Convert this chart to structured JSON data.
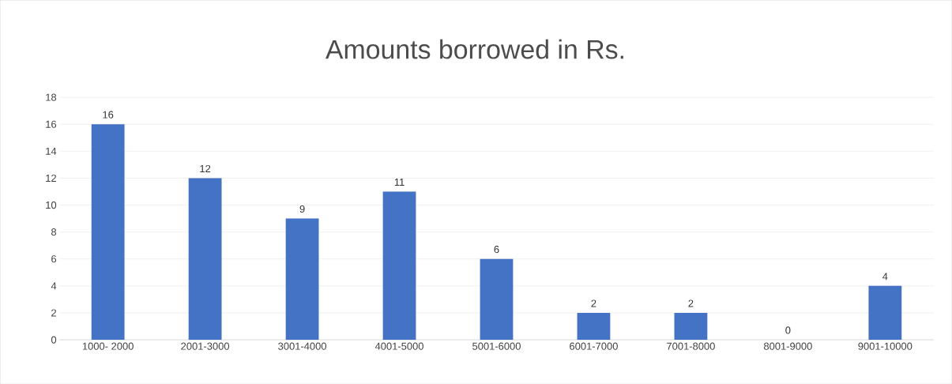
{
  "chart_data": {
    "type": "bar",
    "title": "Amounts borrowed in Rs.",
    "categories": [
      "1000- 2000",
      "2001-3000",
      "3001-4000",
      "4001-5000",
      "5001-6000",
      "6001-7000",
      "7001-8000",
      "8001-9000",
      "9001-10000"
    ],
    "values": [
      16,
      12,
      9,
      11,
      6,
      2,
      2,
      0,
      4
    ],
    "color": "#4472c4",
    "ylim": [
      0,
      18
    ],
    "yticks": [
      0,
      2,
      4,
      6,
      8,
      10,
      12,
      14,
      16,
      18
    ],
    "grid": "y",
    "data_labels": true
  }
}
